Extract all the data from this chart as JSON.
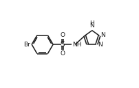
{
  "bg_color": "#ffffff",
  "line_color": "#1a1a1a",
  "line_width": 1.1,
  "font_size": 6.5,
  "fig_width": 2.02,
  "fig_height": 1.29,
  "dpi": 100,
  "xlim": [
    0,
    10
  ],
  "ylim": [
    0,
    6.4
  ]
}
